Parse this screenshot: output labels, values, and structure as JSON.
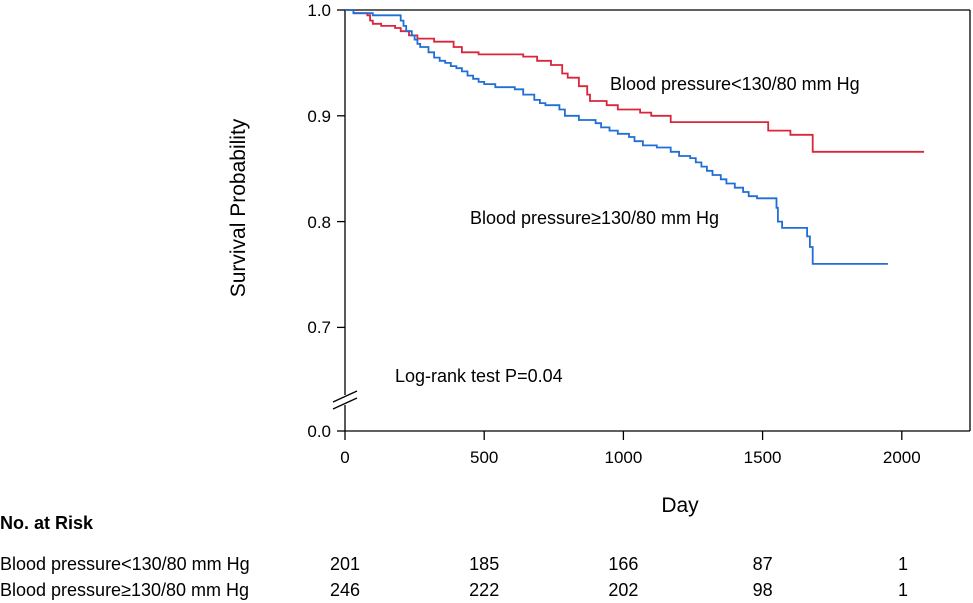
{
  "chart_data": {
    "type": "line",
    "title": "",
    "xlabel": "Day",
    "ylabel": "Survival  Probability",
    "xlim": [
      0,
      2250
    ],
    "ylim": [
      0.64,
      1.0
    ],
    "x_ticks": [
      0,
      500,
      1000,
      1500,
      2000
    ],
    "x_tick_labels": [
      "0",
      "500",
      "1000",
      "1500",
      "2000"
    ],
    "y_ticks": [
      1.0,
      0.9,
      0.8,
      0.7
    ],
    "y_tick_labels": [
      "1.0",
      "0.9",
      "0.8",
      "0.7"
    ],
    "y_break_label": "0.0",
    "grid": false,
    "series": [
      {
        "name": "Blood pressure<130/80 mm Hg",
        "color": "#d9263a",
        "step": true,
        "points": [
          [
            0,
            1.0
          ],
          [
            30,
            0.997
          ],
          [
            80,
            0.995
          ],
          [
            90,
            0.99
          ],
          [
            100,
            0.987
          ],
          [
            130,
            0.985
          ],
          [
            180,
            0.983
          ],
          [
            200,
            0.98
          ],
          [
            230,
            0.976
          ],
          [
            260,
            0.973
          ],
          [
            320,
            0.97
          ],
          [
            390,
            0.965
          ],
          [
            420,
            0.96
          ],
          [
            480,
            0.958
          ],
          [
            640,
            0.956
          ],
          [
            690,
            0.952
          ],
          [
            740,
            0.948
          ],
          [
            780,
            0.94
          ],
          [
            800,
            0.936
          ],
          [
            840,
            0.928
          ],
          [
            870,
            0.92
          ],
          [
            880,
            0.914
          ],
          [
            940,
            0.91
          ],
          [
            980,
            0.906
          ],
          [
            1060,
            0.903
          ],
          [
            1100,
            0.9
          ],
          [
            1170,
            0.894
          ],
          [
            1520,
            0.886
          ],
          [
            1600,
            0.882
          ],
          [
            1680,
            0.866
          ],
          [
            2080,
            0.866
          ]
        ]
      },
      {
        "name": "Blood pressure≥130/80 mm Hg",
        "color": "#1f6fd6",
        "step": true,
        "points": [
          [
            0,
            1.0
          ],
          [
            30,
            0.997
          ],
          [
            100,
            0.995
          ],
          [
            200,
            0.99
          ],
          [
            210,
            0.985
          ],
          [
            220,
            0.98
          ],
          [
            240,
            0.976
          ],
          [
            250,
            0.972
          ],
          [
            260,
            0.968
          ],
          [
            270,
            0.965
          ],
          [
            300,
            0.96
          ],
          [
            320,
            0.955
          ],
          [
            340,
            0.952
          ],
          [
            360,
            0.95
          ],
          [
            380,
            0.947
          ],
          [
            400,
            0.945
          ],
          [
            420,
            0.942
          ],
          [
            440,
            0.938
          ],
          [
            460,
            0.935
          ],
          [
            480,
            0.932
          ],
          [
            500,
            0.93
          ],
          [
            540,
            0.927
          ],
          [
            610,
            0.925
          ],
          [
            640,
            0.92
          ],
          [
            680,
            0.915
          ],
          [
            700,
            0.912
          ],
          [
            720,
            0.91
          ],
          [
            770,
            0.906
          ],
          [
            790,
            0.9
          ],
          [
            840,
            0.896
          ],
          [
            900,
            0.893
          ],
          [
            920,
            0.889
          ],
          [
            950,
            0.886
          ],
          [
            980,
            0.883
          ],
          [
            1020,
            0.88
          ],
          [
            1040,
            0.876
          ],
          [
            1070,
            0.872
          ],
          [
            1120,
            0.87
          ],
          [
            1170,
            0.866
          ],
          [
            1200,
            0.862
          ],
          [
            1240,
            0.86
          ],
          [
            1260,
            0.856
          ],
          [
            1280,
            0.852
          ],
          [
            1300,
            0.848
          ],
          [
            1320,
            0.844
          ],
          [
            1350,
            0.84
          ],
          [
            1370,
            0.836
          ],
          [
            1400,
            0.832
          ],
          [
            1430,
            0.828
          ],
          [
            1450,
            0.824
          ],
          [
            1480,
            0.822
          ],
          [
            1550,
            0.813
          ],
          [
            1555,
            0.8
          ],
          [
            1570,
            0.794
          ],
          [
            1660,
            0.786
          ],
          [
            1670,
            0.776
          ],
          [
            1680,
            0.76
          ],
          [
            1950,
            0.76
          ]
        ]
      }
    ],
    "annotations": {
      "label_low": "Blood pressure<130/80 mm Hg",
      "label_high": "Blood pressure≥130/80 mm Hg",
      "logrank": "Log-rank test P=0.04"
    },
    "risk_table": {
      "title": "No. at Risk",
      "time_points": [
        0,
        500,
        1000,
        1500,
        2000
      ],
      "rows": [
        {
          "label": "Blood pressure<130/80 mm Hg",
          "values": [
            "201",
            "185",
            "166",
            "87",
            "1"
          ]
        },
        {
          "label": "Blood pressure≥130/80 mm Hg",
          "values": [
            "246",
            "222",
            "202",
            "98",
            "1"
          ]
        }
      ]
    }
  }
}
